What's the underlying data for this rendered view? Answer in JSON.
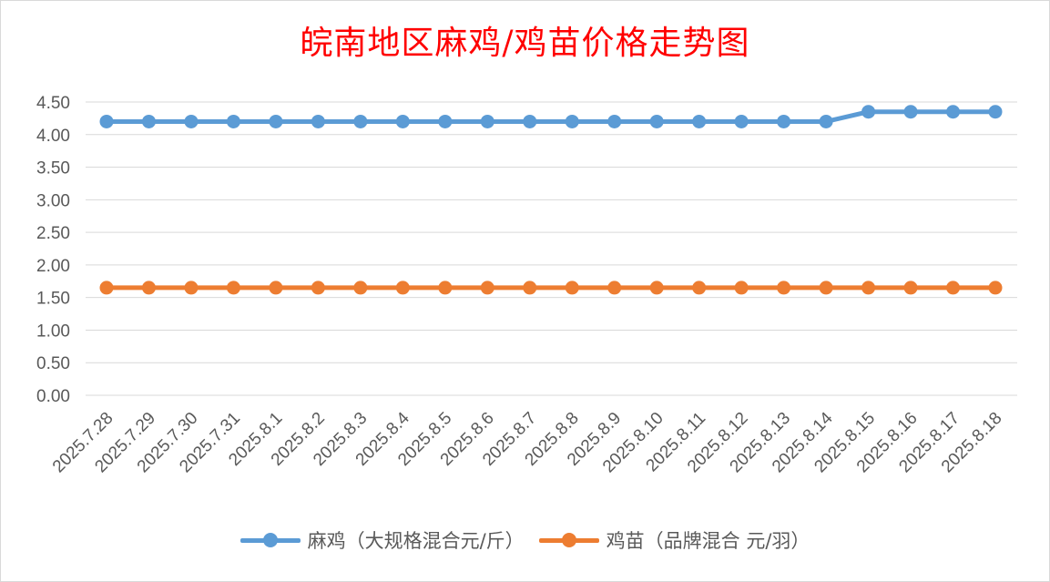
{
  "chart_data": {
    "type": "line",
    "title": "皖南地区麻鸡/鸡苗价格走势图",
    "categories": [
      "2025.7.28",
      "2025.7.29",
      "2025.7.30",
      "2025.7.31",
      "2025.8.1",
      "2025.8.2",
      "2025.8.3",
      "2025.8.4",
      "2025.8.5",
      "2025.8.6",
      "2025.8.7",
      "2025.8.8",
      "2025.8.9",
      "2025.8.10",
      "2025.8.11",
      "2025.8.12",
      "2025.8.13",
      "2025.8.14",
      "2025.8.15",
      "2025.8.16",
      "2025.8.17",
      "2025.8.18"
    ],
    "series": [
      {
        "name": "麻鸡（大规格混合元/斤）",
        "color": "#5b9bd5",
        "values": [
          4.2,
          4.2,
          4.2,
          4.2,
          4.2,
          4.2,
          4.2,
          4.2,
          4.2,
          4.2,
          4.2,
          4.2,
          4.2,
          4.2,
          4.2,
          4.2,
          4.2,
          4.2,
          4.35,
          4.35,
          4.35,
          4.35
        ]
      },
      {
        "name": "鸡苗（品牌混合 元/羽）",
        "color": "#ed7d31",
        "values": [
          1.65,
          1.65,
          1.65,
          1.65,
          1.65,
          1.65,
          1.65,
          1.65,
          1.65,
          1.65,
          1.65,
          1.65,
          1.65,
          1.65,
          1.65,
          1.65,
          1.65,
          1.65,
          1.65,
          1.65,
          1.65,
          1.65
        ]
      }
    ],
    "ylim": [
      0,
      4.5
    ],
    "yticks": [
      "0.00",
      "0.50",
      "1.00",
      "1.50",
      "2.00",
      "2.50",
      "3.00",
      "3.50",
      "4.00",
      "4.50"
    ],
    "xlabel": "",
    "ylabel": "",
    "grid": "horizontal",
    "legend_position": "bottom",
    "gridline_color": "#d9d9d9"
  }
}
